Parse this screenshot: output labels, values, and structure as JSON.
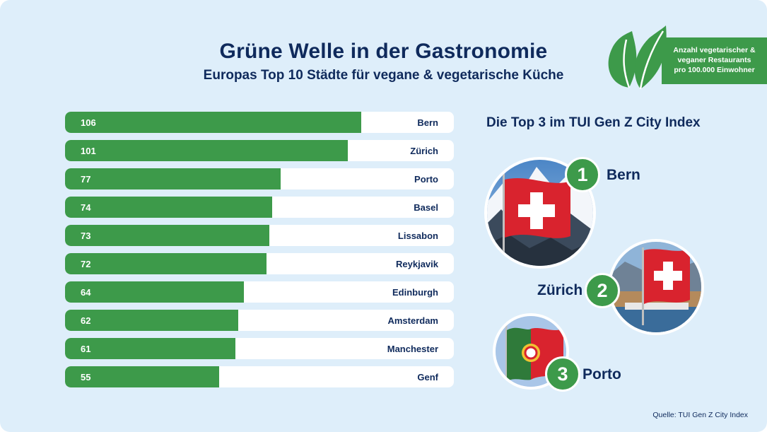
{
  "header": {
    "title": "Grüne Welle in der Gastronomie",
    "subtitle": "Europas Top 10 Städte für vegane & vegetarische Küche"
  },
  "legend": {
    "lines": [
      "Anzahl vegetarischer &",
      "veganer Restaurants",
      "pro 100.000 Einwohner"
    ]
  },
  "chart_data": {
    "type": "bar",
    "orientation": "horizontal",
    "categories": [
      "Bern",
      "Zürich",
      "Porto",
      "Basel",
      "Lissabon",
      "Reykjavik",
      "Edinburgh",
      "Amsterdam",
      "Manchester",
      "Genf"
    ],
    "values": [
      106,
      101,
      77,
      74,
      73,
      72,
      64,
      62,
      61,
      55
    ],
    "xlim": [
      0,
      139
    ],
    "bar_color": "#3d9a4a",
    "track_color": "#ffffff"
  },
  "top3": {
    "title": "Die Top 3 im TUI Gen Z City Index",
    "items": [
      {
        "rank": "1",
        "city": "Bern",
        "icon": "swiss-flag-mountains"
      },
      {
        "rank": "2",
        "city": "Zürich",
        "icon": "swiss-flag-lake"
      },
      {
        "rank": "3",
        "city": "Porto",
        "icon": "portuguese-flag"
      }
    ]
  },
  "source": "Quelle: TUI Gen Z City Index",
  "colors": {
    "green": "#3d9a4a",
    "navy": "#0f2a5c",
    "background": "#deeefa"
  }
}
